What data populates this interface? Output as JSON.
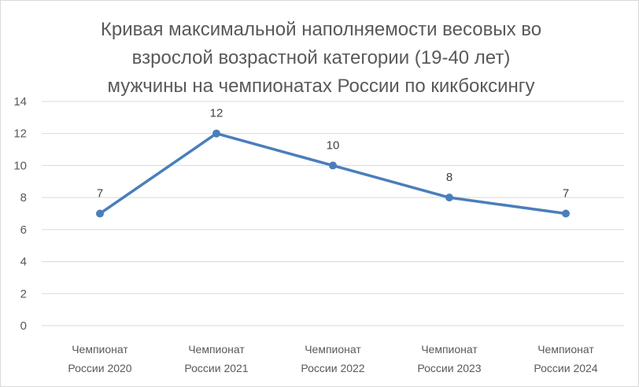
{
  "chart_data": {
    "type": "line",
    "title": "Кривая максимальной наполняемости весовых во взрослой возрастной категории (19-40 лет) мужчины на чемпионатах России по кикбоксингу",
    "title_lines": [
      "Кривая максимальной наполняемости весовых во",
      "взрослой возрастной категории (19-40 лет)",
      "мужчины на чемпионатах России по кикбоксингу"
    ],
    "categories": [
      [
        "Чемпионат",
        "России 2020"
      ],
      [
        "Чемпионат",
        "России 2021"
      ],
      [
        "Чемпионат",
        "России 2022"
      ],
      [
        "Чемпионат",
        "России 2023"
      ],
      [
        "Чемпионат",
        "России 2024"
      ]
    ],
    "series": [
      {
        "values": [
          7,
          12,
          10,
          8,
          7
        ],
        "color": "#4a7ebb"
      }
    ],
    "ylim": [
      0,
      14
    ],
    "yticks": [
      0,
      2,
      4,
      6,
      8,
      10,
      12,
      14
    ],
    "grid": true,
    "data_labels": true,
    "legend": "none",
    "xlabel": "",
    "ylabel": ""
  },
  "colors": {
    "series": "#4a7ebb",
    "grid": "#d9d9d9",
    "text": "#595959"
  }
}
